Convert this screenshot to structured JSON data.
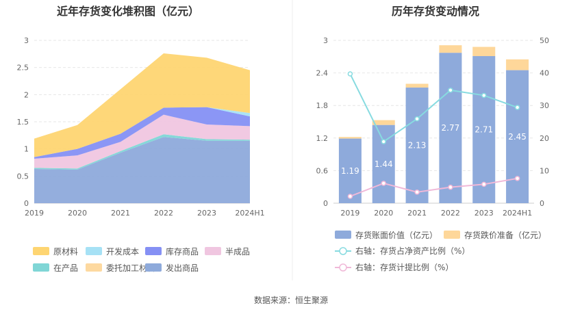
{
  "source": "数据来源：恒生聚源",
  "chart_data": [
    {
      "type": "area",
      "stacked": true,
      "title": "近年存货变化堆积图（亿元）",
      "categories": [
        "2019",
        "2020",
        "2021",
        "2022",
        "2023",
        "2024H1"
      ],
      "ylim": [
        0,
        3
      ],
      "yticks": [
        "0",
        "0.5",
        "1",
        "1.5",
        "2",
        "2.5",
        "3"
      ],
      "series": [
        {
          "name": "发出商品",
          "color": "#8eaadb",
          "values": [
            0.63,
            0.62,
            0.93,
            1.22,
            1.15,
            1.15
          ]
        },
        {
          "name": "在产品",
          "color": "#80d6d6",
          "values": [
            0.02,
            0.02,
            0.03,
            0.05,
            0.03,
            0.02
          ]
        },
        {
          "name": "半成品",
          "color": "#f0c6e0",
          "values": [
            0.17,
            0.24,
            0.17,
            0.36,
            0.27,
            0.25
          ]
        },
        {
          "name": "库存商品",
          "color": "#8590f4",
          "values": [
            0.03,
            0.12,
            0.15,
            0.13,
            0.32,
            0.18
          ]
        },
        {
          "name": "开发成本",
          "color": "#a6e1f5",
          "values": [
            0.0,
            0.0,
            0.0,
            0.0,
            0.0,
            0.06
          ]
        },
        {
          "name": "委托加工材料",
          "color": "#fdd9a0",
          "values": [
            0.0,
            0.0,
            0.0,
            0.0,
            0.0,
            0.0
          ]
        },
        {
          "name": "原材料",
          "color": "#fed572",
          "values": [
            0.34,
            0.44,
            0.82,
            1.0,
            0.91,
            0.79
          ]
        }
      ],
      "legend": [
        "原材料",
        "开发成本",
        "库存商品",
        "半成品",
        "在产品",
        "委托加工材料",
        "发出商品"
      ]
    },
    {
      "type": "bar",
      "title": "历年存货变动情况",
      "categories": [
        "2019",
        "2020",
        "2021",
        "2022",
        "2023",
        "2024H1"
      ],
      "ylim": [
        0,
        3
      ],
      "yticks": [
        "0",
        "0.6",
        "1.2",
        "1.8",
        "2.4",
        "3"
      ],
      "y2lim": [
        0,
        50
      ],
      "y2ticks": [
        "0",
        "10",
        "20",
        "30",
        "40",
        "50"
      ],
      "bars": {
        "name": "存货账面价值（亿元）",
        "color": "#8eaadb",
        "values": [
          1.19,
          1.44,
          2.13,
          2.77,
          2.71,
          2.45
        ],
        "labels": [
          "1.19",
          "1.44",
          "2.13",
          "2.77",
          "2.71",
          "2.45"
        ]
      },
      "bars_top": {
        "name": "存货跌价准备（亿元）",
        "color": "#fed79a",
        "values": [
          0.03,
          0.09,
          0.07,
          0.14,
          0.17,
          0.2
        ]
      },
      "lines": [
        {
          "name": "右轴：存货占净资产比例（%）",
          "color": "#87dbe0",
          "values": [
            39.7,
            18.9,
            25.9,
            34.7,
            33.1,
            29.4
          ]
        },
        {
          "name": "右轴：存货计提比例（%）",
          "color": "#f0b8d8",
          "values": [
            2.1,
            6.1,
            3.4,
            4.9,
            5.8,
            7.6
          ]
        }
      ]
    }
  ]
}
